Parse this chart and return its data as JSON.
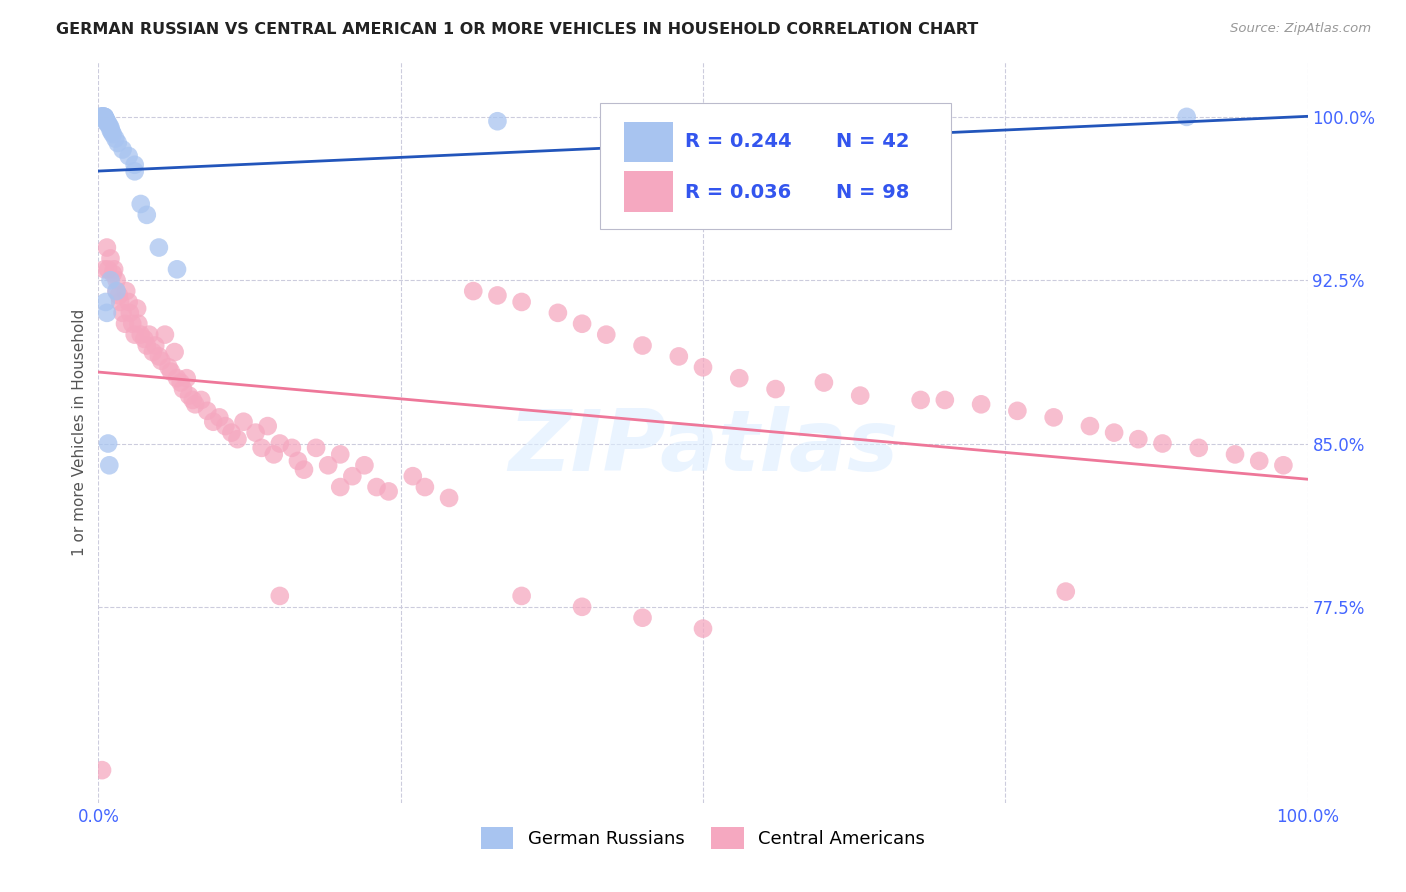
{
  "title": "GERMAN RUSSIAN VS CENTRAL AMERICAN 1 OR MORE VEHICLES IN HOUSEHOLD CORRELATION CHART",
  "source": "Source: ZipAtlas.com",
  "ylabel": "1 or more Vehicles in Household",
  "xlim": [
    0.0,
    1.0
  ],
  "ylim": [
    0.685,
    1.025
  ],
  "yticks": [
    0.775,
    0.85,
    0.925,
    1.0
  ],
  "ytick_labels": [
    "77.5%",
    "85.0%",
    "92.5%",
    "100.0%"
  ],
  "legend_R_blue": "R = 0.244",
  "legend_N_blue": "N = 42",
  "legend_R_pink": "R = 0.036",
  "legend_N_pink": "N = 98",
  "blue_color": "#a8c4f0",
  "pink_color": "#f5a8c0",
  "blue_line_color": "#2255bb",
  "pink_line_color": "#ee7799",
  "watermark": "ZIPatlas",
  "blue_scatter_x": [
    0.001,
    0.002,
    0.002,
    0.003,
    0.003,
    0.003,
    0.004,
    0.004,
    0.004,
    0.005,
    0.005,
    0.005,
    0.005,
    0.006,
    0.006,
    0.006,
    0.007,
    0.007,
    0.008,
    0.009,
    0.01,
    0.01,
    0.011,
    0.012,
    0.014,
    0.016,
    0.02,
    0.025,
    0.03,
    0.03,
    0.035,
    0.04,
    0.05,
    0.065,
    0.01,
    0.015,
    0.006,
    0.007,
    0.33,
    0.9,
    0.008,
    0.009
  ],
  "blue_scatter_y": [
    1.0,
    1.0,
    1.0,
    1.0,
    1.0,
    1.0,
    1.0,
    1.0,
    1.0,
    1.0,
    1.0,
    1.0,
    1.0,
    0.999,
    0.999,
    0.998,
    0.998,
    0.997,
    0.997,
    0.996,
    0.995,
    0.994,
    0.993,
    0.992,
    0.99,
    0.988,
    0.985,
    0.982,
    0.978,
    0.975,
    0.96,
    0.955,
    0.94,
    0.93,
    0.925,
    0.92,
    0.915,
    0.91,
    0.998,
    1.0,
    0.85,
    0.84
  ],
  "pink_scatter_x": [
    0.003,
    0.005,
    0.007,
    0.008,
    0.01,
    0.012,
    0.013,
    0.015,
    0.015,
    0.017,
    0.018,
    0.02,
    0.022,
    0.023,
    0.025,
    0.026,
    0.028,
    0.03,
    0.032,
    0.033,
    0.035,
    0.038,
    0.04,
    0.042,
    0.045,
    0.047,
    0.05,
    0.052,
    0.055,
    0.058,
    0.06,
    0.063,
    0.065,
    0.068,
    0.07,
    0.073,
    0.075,
    0.078,
    0.08,
    0.085,
    0.09,
    0.095,
    0.1,
    0.105,
    0.11,
    0.115,
    0.12,
    0.13,
    0.135,
    0.14,
    0.145,
    0.15,
    0.16,
    0.165,
    0.17,
    0.18,
    0.19,
    0.2,
    0.21,
    0.22,
    0.23,
    0.24,
    0.26,
    0.27,
    0.29,
    0.31,
    0.33,
    0.35,
    0.38,
    0.4,
    0.42,
    0.45,
    0.48,
    0.5,
    0.53,
    0.56,
    0.6,
    0.63,
    0.68,
    0.7,
    0.73,
    0.76,
    0.79,
    0.82,
    0.84,
    0.86,
    0.88,
    0.91,
    0.94,
    0.96,
    0.98,
    0.35,
    0.4,
    0.45,
    0.5,
    0.2,
    0.15,
    0.8
  ],
  "pink_scatter_y": [
    0.7,
    0.93,
    0.94,
    0.93,
    0.935,
    0.928,
    0.93,
    0.925,
    0.92,
    0.918,
    0.915,
    0.91,
    0.905,
    0.92,
    0.915,
    0.91,
    0.905,
    0.9,
    0.912,
    0.905,
    0.9,
    0.898,
    0.895,
    0.9,
    0.892,
    0.895,
    0.89,
    0.888,
    0.9,
    0.885,
    0.883,
    0.892,
    0.88,
    0.878,
    0.875,
    0.88,
    0.872,
    0.87,
    0.868,
    0.87,
    0.865,
    0.86,
    0.862,
    0.858,
    0.855,
    0.852,
    0.86,
    0.855,
    0.848,
    0.858,
    0.845,
    0.85,
    0.848,
    0.842,
    0.838,
    0.848,
    0.84,
    0.845,
    0.835,
    0.84,
    0.83,
    0.828,
    0.835,
    0.83,
    0.825,
    0.92,
    0.918,
    0.915,
    0.91,
    0.905,
    0.9,
    0.895,
    0.89,
    0.885,
    0.88,
    0.875,
    0.878,
    0.872,
    0.87,
    0.87,
    0.868,
    0.865,
    0.862,
    0.858,
    0.855,
    0.852,
    0.85,
    0.848,
    0.845,
    0.842,
    0.84,
    0.78,
    0.775,
    0.77,
    0.765,
    0.83,
    0.78,
    0.782
  ]
}
